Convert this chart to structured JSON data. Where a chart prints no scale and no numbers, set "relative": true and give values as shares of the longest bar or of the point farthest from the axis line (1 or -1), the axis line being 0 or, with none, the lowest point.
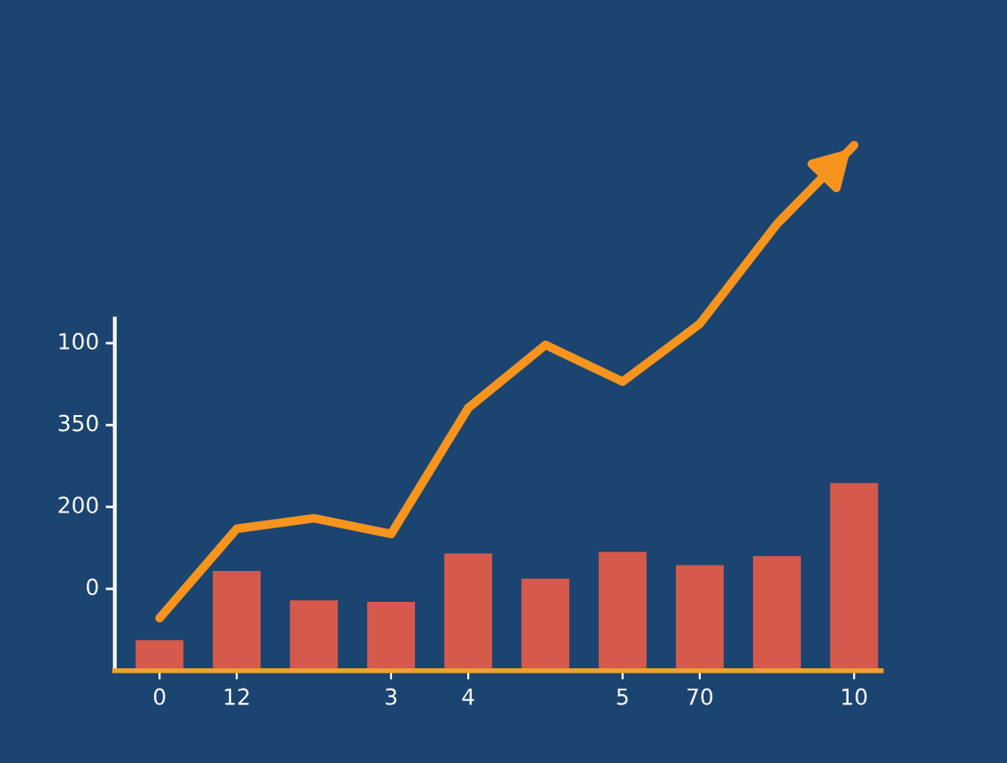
{
  "chart_data": {
    "type": "bar",
    "relative": true,
    "categories": [
      "0",
      "12",
      null,
      "3",
      "4",
      null,
      "5",
      "70",
      null,
      "10"
    ],
    "series": [
      {
        "color": "#d55a4b",
        "values": [
          0.058,
          0.19,
          0.134,
          0.131,
          0.223,
          0.175,
          0.226,
          0.201,
          0.218,
          0.357
        ]
      },
      {
        "type": "line",
        "color": "#f7941d",
        "values": [
          0.1,
          0.27,
          0.29,
          0.26,
          0.5,
          0.62,
          0.55,
          0.66,
          0.85,
          1.0
        ]
      }
    ],
    "annotations": [
      "100",
      "350",
      "200",
      "0"
    ],
    "marker": "none",
    "line_style": "solid"
  }
}
